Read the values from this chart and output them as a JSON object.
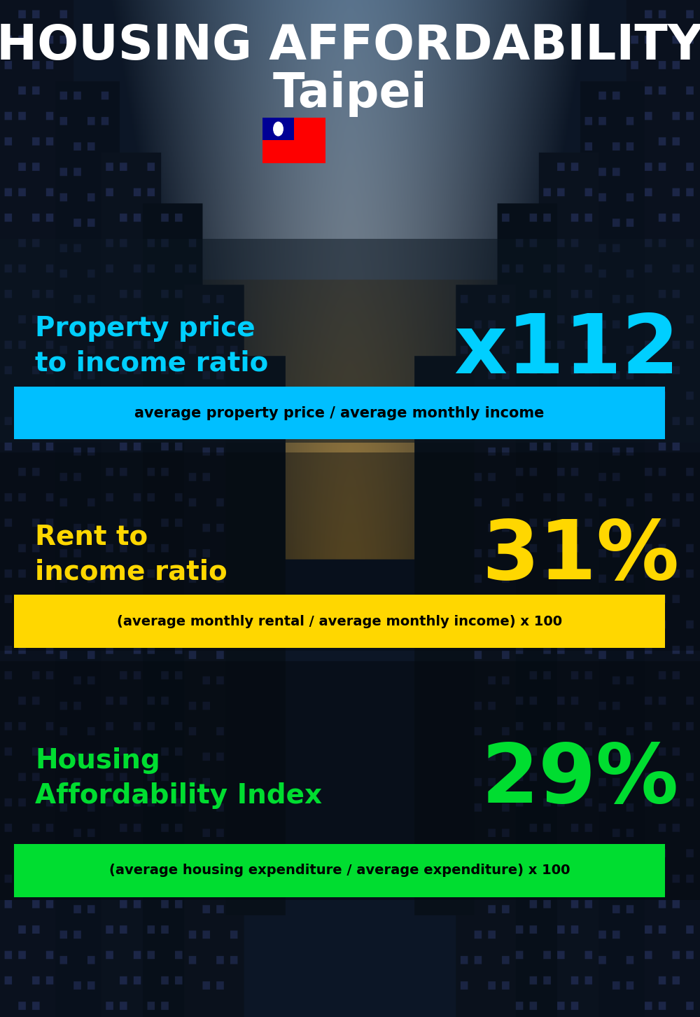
{
  "title_line1": "HOUSING AFFORDABILITY",
  "title_line2": "Taipei",
  "flag_emoji": "🇹🇼",
  "section1_label": "Property price\nto income ratio",
  "section1_value": "x112",
  "section1_label_color": "#00cfff",
  "section1_value_color": "#00cfff",
  "section1_banner_text": "average property price / average monthly income",
  "section1_banner_bg": "#00bfff",
  "section2_label": "Rent to\nincome ratio",
  "section2_value": "31%",
  "section2_label_color": "#ffd700",
  "section2_value_color": "#ffd700",
  "section2_banner_text": "(average monthly rental / average monthly income) x 100",
  "section2_banner_bg": "#ffd700",
  "section3_label": "Housing\nAffordability Index",
  "section3_value": "29%",
  "section3_label_color": "#00dd30",
  "section3_value_color": "#00dd30",
  "section3_banner_text": "(average housing expenditure / average expenditure) x 100",
  "section3_banner_bg": "#00dd30",
  "bg_color": "#0a1520",
  "title_color": "#ffffff",
  "banner_text_color": "#000000",
  "fig_width": 10.0,
  "fig_height": 14.52
}
